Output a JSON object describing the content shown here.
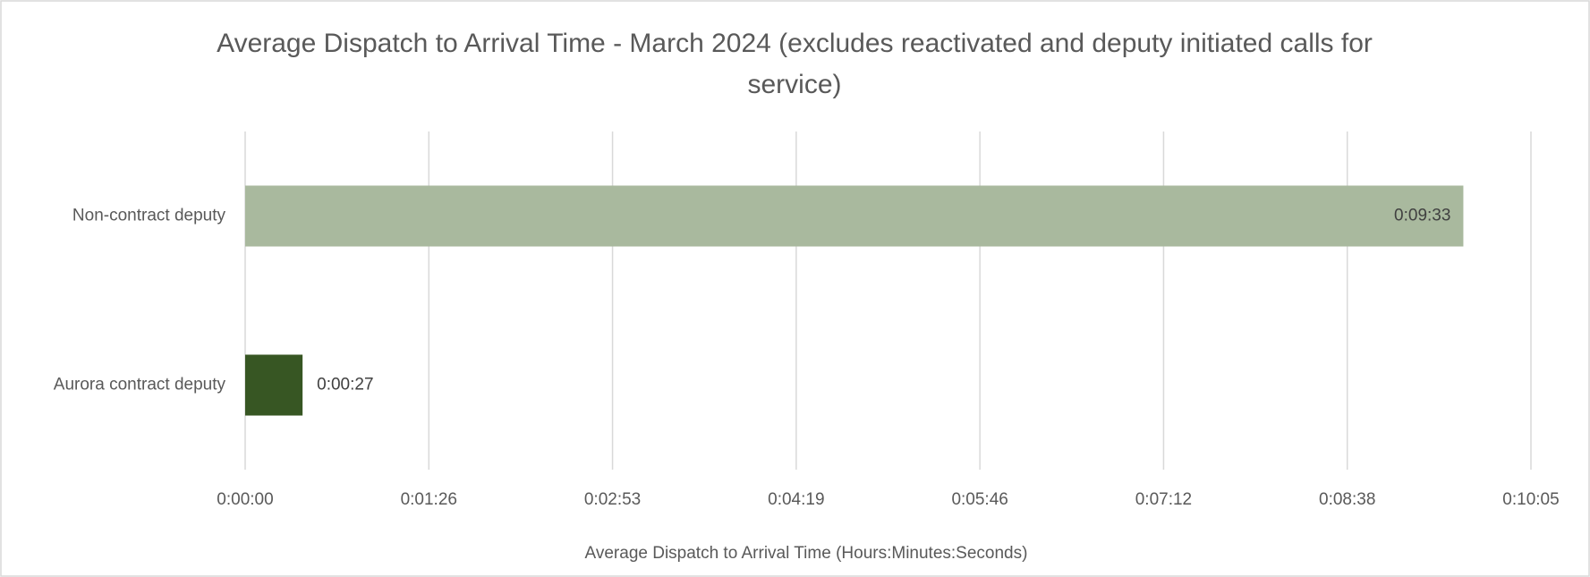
{
  "chart_data": {
    "type": "hbar",
    "title": "Average Dispatch to Arrival Time - March 2024 (excludes reactivated and deputy initiated calls for service)",
    "x_label": "Average Dispatch to Arrival Time (Hours:Minutes:Seconds)",
    "categories": [
      "Non-contract deputy",
      "Aurora contract deputy"
    ],
    "values": [
      573,
      27
    ],
    "value_labels": [
      "0:09:33",
      "0:00:27"
    ],
    "colors": [
      "#a9b99e",
      "#375623"
    ],
    "xlim": [
      0,
      604.8
    ],
    "xticks": [
      {
        "value": 0,
        "label": "0:00:00"
      },
      {
        "value": 86.4,
        "label": "0:01:26"
      },
      {
        "value": 172.8,
        "label": "0:02:53"
      },
      {
        "value": 259.2,
        "label": "0:04:19"
      },
      {
        "value": 345.6,
        "label": "0:05:46"
      },
      {
        "value": 432,
        "label": "0:07:12"
      },
      {
        "value": 518.4,
        "label": "0:08:38"
      },
      {
        "value": 604.8,
        "label": "0:10:05"
      }
    ],
    "grid": true
  }
}
